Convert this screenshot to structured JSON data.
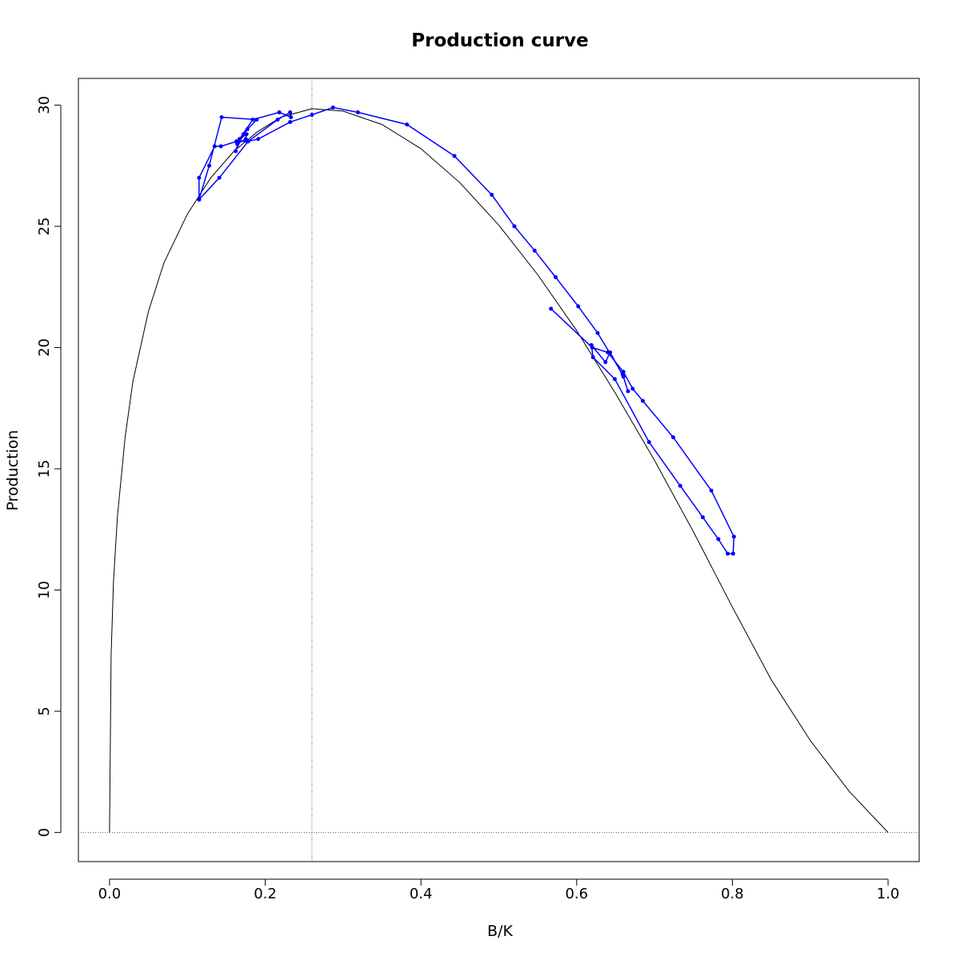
{
  "chart_data": {
    "type": "line",
    "title": "Production curve",
    "xlabel": "B/K",
    "ylabel": "Production",
    "xlim": [
      -0.04,
      1.04
    ],
    "ylim": [
      -1.2,
      31.1
    ],
    "x_ticks": [
      "0.0",
      "0.2",
      "0.4",
      "0.6",
      "0.8",
      "1.0"
    ],
    "y_ticks": [
      "0",
      "5",
      "10",
      "15",
      "20",
      "25",
      "30"
    ],
    "x_tick_values": [
      0,
      0.2,
      0.4,
      0.6,
      0.8,
      1.0
    ],
    "y_tick_values": [
      0,
      5,
      10,
      15,
      20,
      25,
      30
    ],
    "reference_lines": {
      "vertical_x": 0.26,
      "horizontal_y": 0
    },
    "colors": {
      "curve": "#000000",
      "observed": "#0000ff",
      "reference": "#555555"
    },
    "production_curve": {
      "x": [
        0,
        0.002,
        0.005,
        0.01,
        0.02,
        0.03,
        0.05,
        0.07,
        0.1,
        0.13,
        0.16,
        0.19,
        0.22,
        0.26,
        0.3,
        0.35,
        0.4,
        0.45,
        0.5,
        0.55,
        0.6,
        0.65,
        0.7,
        0.75,
        0.8,
        0.85,
        0.9,
        0.95,
        1.0
      ],
      "y": [
        0,
        7.3,
        10.3,
        13.0,
        16.3,
        18.6,
        21.5,
        23.5,
        25.5,
        27.0,
        28.1,
        28.9,
        29.5,
        29.85,
        29.75,
        29.2,
        28.2,
        26.8,
        25.05,
        23.0,
        20.7,
        18.1,
        15.35,
        12.4,
        9.3,
        6.3,
        3.8,
        1.7,
        0
      ]
    },
    "series": [
      {
        "x": [
          0.567,
          0.62,
          0.64,
          0.66,
          0.672,
          0.685,
          0.724,
          0.773,
          0.802,
          0.801,
          0.794,
          0.782,
          0.762,
          0.733,
          0.693,
          0.649,
          0.621,
          0.619,
          0.637,
          0.643,
          0.66,
          0.666,
          0.659,
          0.627,
          0.602,
          0.573,
          0.546,
          0.52,
          0.491,
          0.443,
          0.382,
          0.319,
          0.287,
          0.26,
          0.232,
          0.191,
          0.177,
          0.163,
          0.164,
          0.175,
          0.176,
          0.163,
          0.143,
          0.135,
          0.115,
          0.115,
          0.141,
          0.178,
          0.216,
          0.232,
          0.233,
          0.218,
          0.184,
          0.167,
          0.162,
          0.172,
          0.177,
          0.189,
          0.144,
          0.128,
          0.115
        ],
        "y": [
          21.6,
          20.0,
          19.8,
          19.0,
          18.3,
          17.8,
          16.3,
          14.1,
          12.2,
          11.5,
          11.5,
          12.1,
          13.0,
          14.3,
          16.1,
          18.7,
          19.6,
          20.1,
          19.4,
          19.8,
          18.8,
          18.2,
          18.9,
          20.6,
          21.7,
          22.9,
          24.0,
          25.0,
          26.3,
          27.9,
          29.2,
          29.7,
          29.9,
          29.6,
          29.3,
          28.6,
          28.5,
          28.5,
          28.4,
          28.6,
          28.8,
          28.5,
          28.3,
          28.3,
          27.0,
          26.1,
          27.0,
          28.5,
          29.4,
          29.7,
          29.5,
          29.7,
          29.4,
          28.6,
          28.1,
          28.8,
          29.0,
          29.4,
          29.5,
          27.5,
          26.1
        ]
      }
    ]
  }
}
